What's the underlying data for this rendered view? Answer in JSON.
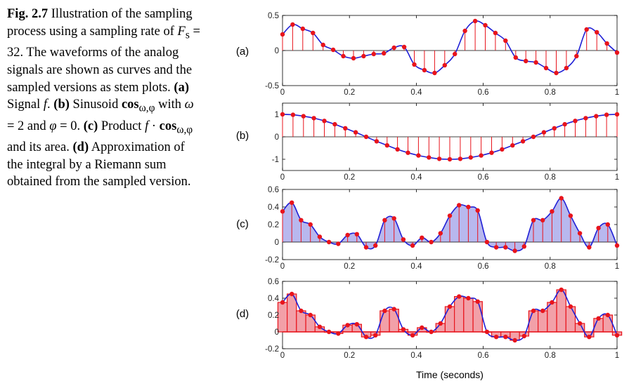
{
  "caption": {
    "fig_label": "Fig. 2.7",
    "p1": " Illustration of the sampling process using a sampling rate of ",
    "fs_var": "F",
    "fs_sub": "s",
    "p2": " = 32. The waveforms of the analog signals are shown as curves and the sampled versions as stem plots. ",
    "a_label": "(a)",
    "p3": " Signal ",
    "f_var": "f",
    "p4": ". ",
    "b_label": "(b)",
    "p5": " Sinusoid ",
    "cos_text": "cos",
    "cos_sub": "ω,φ",
    "p6": " with ",
    "omega_text": "ω",
    "p7": " = 2 and ",
    "phi_text": "φ",
    "p8": " = 0. ",
    "c_label": "(c)",
    "p9": " Product ",
    "f_var2": "f",
    "p10": " · ",
    "cos_text2": "cos",
    "cos_sub2": "ω,φ",
    "p11": " and its area. ",
    "d_label": "(d)",
    "p12": " Approximation of the integral by a Riemann sum obtained from the sampled version."
  },
  "colors": {
    "curve": "#1f1fd6",
    "stem": "#e8141c",
    "fill_c": "#b8b8ee",
    "bar_d": "#f2a0a8"
  },
  "chart_data": [
    {
      "type": "stem",
      "panel_label": "(a)",
      "xlim": [
        0,
        1
      ],
      "ylim": [
        -0.5,
        0.5
      ],
      "yticks": [
        "-0.5",
        "0",
        "0.5"
      ],
      "xticks": [
        "0",
        "0.2",
        "0.4",
        "0.6",
        "0.8",
        "1"
      ],
      "samples": [
        0.23,
        0.37,
        0.31,
        0.25,
        0.08,
        0.01,
        -0.08,
        -0.11,
        -0.08,
        -0.05,
        -0.04,
        0.04,
        0.05,
        -0.2,
        -0.28,
        -0.32,
        -0.21,
        -0.05,
        0.28,
        0.42,
        0.36,
        0.25,
        0.14,
        -0.1,
        -0.15,
        -0.17,
        -0.25,
        -0.32,
        -0.25,
        -0.08,
        0.3,
        0.26,
        0.1,
        -0.03
      ]
    },
    {
      "type": "stem",
      "panel_label": "(b)",
      "xlim": [
        0,
        1
      ],
      "ylim": [
        -1.5,
        1.5
      ],
      "yticks": [
        "-1",
        "0",
        "1"
      ],
      "xticks": [
        "0",
        "0.2",
        "0.4",
        "0.6",
        "0.8",
        "1"
      ],
      "samples": [
        1.0,
        0.98,
        0.92,
        0.83,
        0.71,
        0.56,
        0.38,
        0.2,
        0.0,
        -0.2,
        -0.38,
        -0.56,
        -0.71,
        -0.83,
        -0.92,
        -0.98,
        -1.0,
        -0.98,
        -0.92,
        -0.83,
        -0.71,
        -0.56,
        -0.38,
        -0.2,
        0.0,
        0.2,
        0.38,
        0.56,
        0.71,
        0.83,
        0.92,
        0.98,
        1.0
      ]
    },
    {
      "type": "stem_area",
      "panel_label": "(c)",
      "xlim": [
        0,
        1
      ],
      "ylim": [
        -0.2,
        0.6
      ],
      "yticks": [
        "-0.2",
        "0",
        "0.2",
        "0.4",
        "0.6"
      ],
      "xticks": [
        "0",
        "0.2",
        "0.4",
        "0.6",
        "0.8",
        "1"
      ],
      "samples": [
        0.35,
        0.45,
        0.25,
        0.2,
        0.06,
        0.0,
        -0.02,
        0.08,
        0.09,
        -0.06,
        -0.04,
        0.25,
        0.27,
        0.03,
        -0.04,
        0.05,
        0.0,
        0.1,
        0.3,
        0.42,
        0.4,
        0.36,
        0.0,
        -0.06,
        -0.06,
        -0.1,
        -0.05,
        0.25,
        0.25,
        0.35,
        0.5,
        0.3,
        0.1,
        -0.06,
        0.16,
        0.2,
        -0.04
      ]
    },
    {
      "type": "riemann",
      "panel_label": "(d)",
      "xlim": [
        0,
        1
      ],
      "ylim": [
        -0.2,
        0.6
      ],
      "yticks": [
        "-0.2",
        "0",
        "0.2",
        "0.4",
        "0.6"
      ],
      "xticks": [
        "0",
        "0.2",
        "0.4",
        "0.6",
        "0.8",
        "1"
      ],
      "xlabel": "Time (seconds)",
      "samples": [
        0.35,
        0.45,
        0.25,
        0.2,
        0.06,
        0.0,
        -0.02,
        0.08,
        0.09,
        -0.06,
        -0.04,
        0.25,
        0.27,
        0.03,
        -0.04,
        0.05,
        0.0,
        0.1,
        0.3,
        0.42,
        0.4,
        0.36,
        0.0,
        -0.06,
        -0.06,
        -0.1,
        -0.05,
        0.25,
        0.25,
        0.35,
        0.5,
        0.3,
        0.1,
        -0.06,
        0.16,
        0.2,
        -0.04
      ]
    }
  ]
}
